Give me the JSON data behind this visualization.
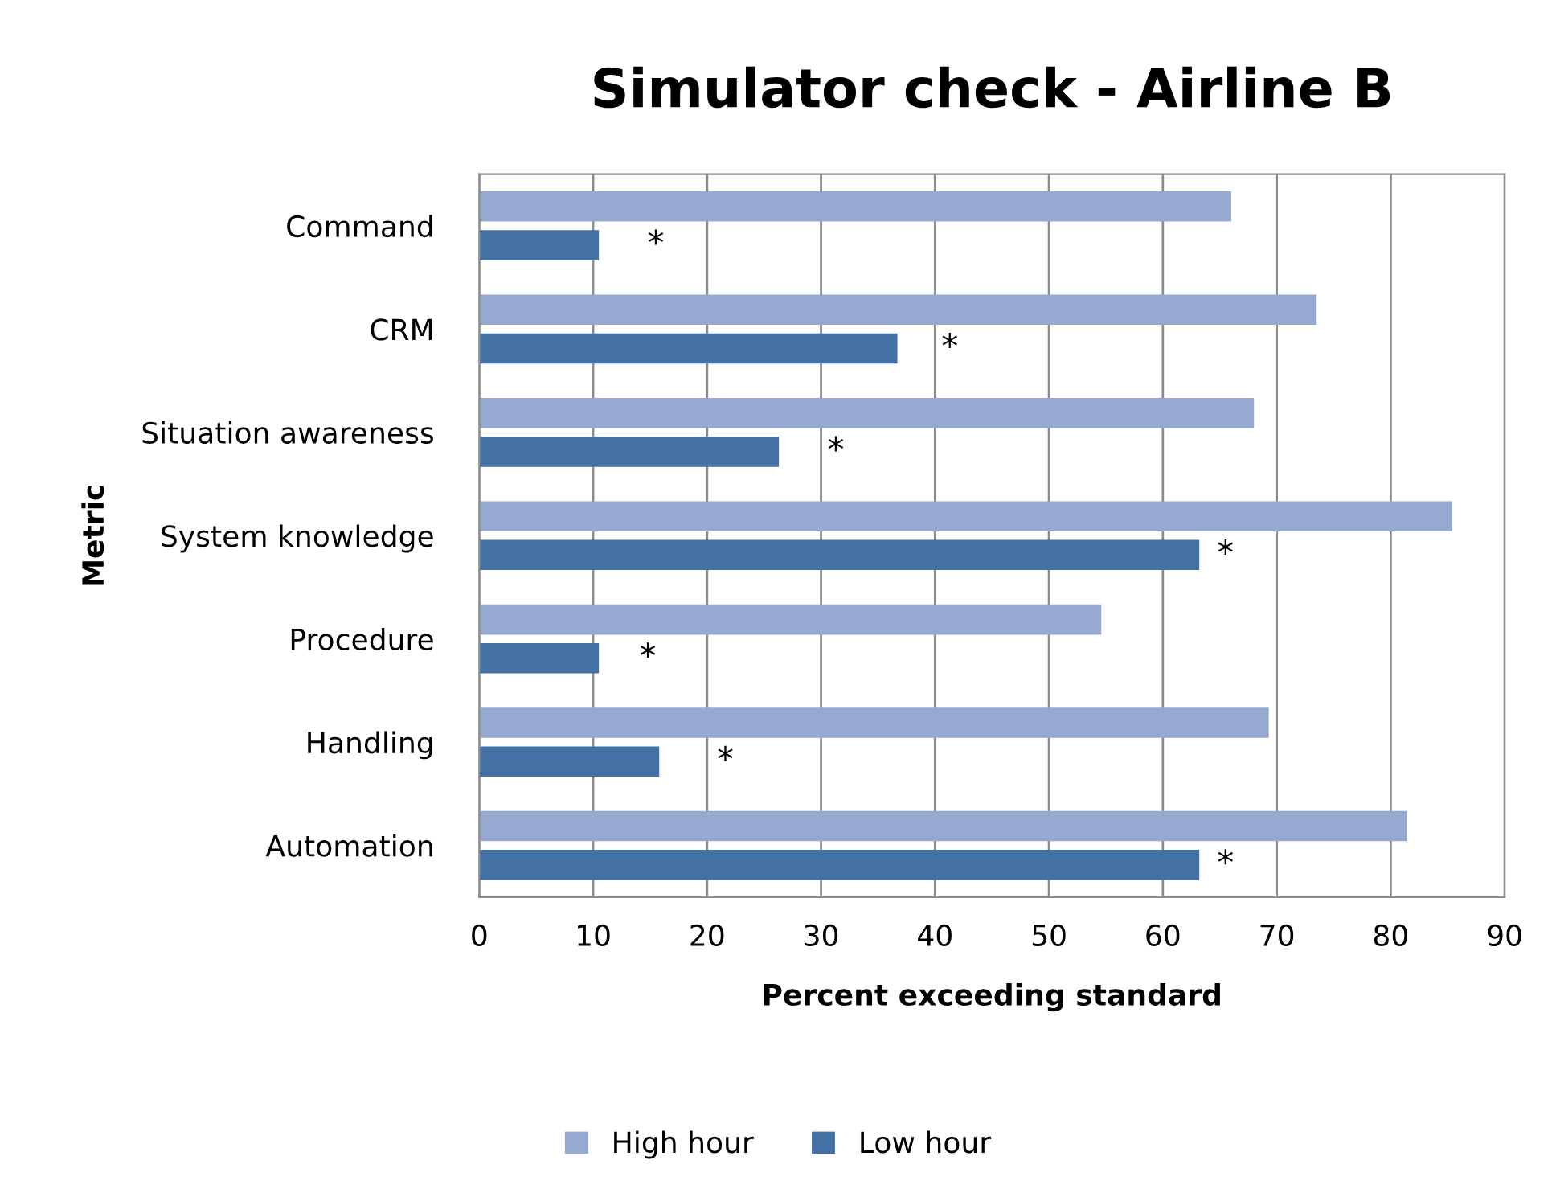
{
  "chart_data": {
    "type": "bar",
    "orientation": "horizontal",
    "title": "Simulator check - Airline B",
    "xlabel": "Percent exceeding standard",
    "ylabel": "Metric",
    "categories": [
      "Command",
      "CRM",
      "Situation awareness",
      "System knowledge",
      "Procedure",
      "Handling",
      "Automation"
    ],
    "series": [
      {
        "name": "High hour",
        "color": "#95a9d1",
        "values": [
          66.0,
          73.5,
          68.0,
          85.4,
          54.6,
          69.3,
          81.4
        ]
      },
      {
        "name": "Low hour",
        "color": "#4371a6",
        "values": [
          10.5,
          36.7,
          26.3,
          63.2,
          10.5,
          15.8,
          63.2
        ]
      }
    ],
    "xlim": [
      0,
      90
    ],
    "xticks": [
      0,
      10,
      20,
      30,
      40,
      50,
      60,
      70,
      80,
      90
    ],
    "grid": "x",
    "legend": "bottom",
    "annotations": [
      {
        "text": "*",
        "x": 15.5,
        "y": "Command"
      },
      {
        "text": "*",
        "x": 41.3,
        "y": "CRM"
      },
      {
        "text": "*",
        "x": 31.3,
        "y": "Situation awareness"
      },
      {
        "text": "*",
        "x": 65.5,
        "y": "System knowledge"
      },
      {
        "text": "*",
        "x": 14.8,
        "y": "Procedure"
      },
      {
        "text": "*",
        "x": 21.6,
        "y": "Handling"
      },
      {
        "text": "*",
        "x": 65.5,
        "y": "Automation"
      }
    ]
  }
}
